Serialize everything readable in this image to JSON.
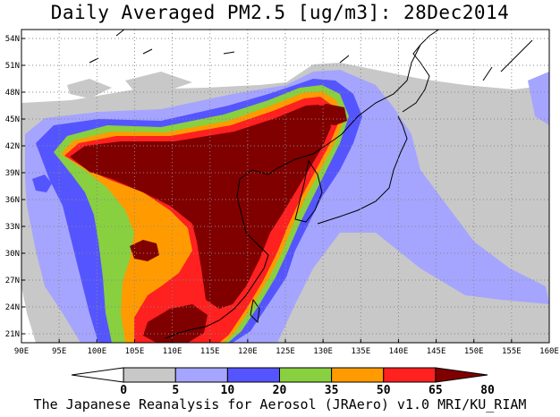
{
  "title": "Daily Averaged PM2.5 [ug/m3]: 28Dec2014",
  "footer": "The Japanese Reanalysis for Aerosol (JRAero) v1.0 MRI/KU_RIAM",
  "map": {
    "lon_range": [
      90,
      160
    ],
    "lat_range": [
      20,
      55
    ],
    "x_ticks": [
      "90E",
      "95E",
      "100E",
      "105E",
      "110E",
      "115E",
      "120E",
      "125E",
      "130E",
      "135E",
      "140E",
      "145E",
      "150E",
      "155E",
      "160E"
    ],
    "y_ticks": [
      "21N",
      "24N",
      "27N",
      "30N",
      "33N",
      "36N",
      "39N",
      "42N",
      "45N",
      "48N",
      "51N",
      "54N"
    ],
    "gridlines": true
  },
  "colorbar": {
    "labels": [
      "0",
      "5",
      "10",
      "20",
      "35",
      "50",
      "65",
      "80"
    ],
    "colors": [
      "#ffffff",
      "#c8c8c8",
      "#a5a5ff",
      "#5555ff",
      "#88d040",
      "#ff9b00",
      "#ff2020",
      "#800000"
    ]
  }
}
